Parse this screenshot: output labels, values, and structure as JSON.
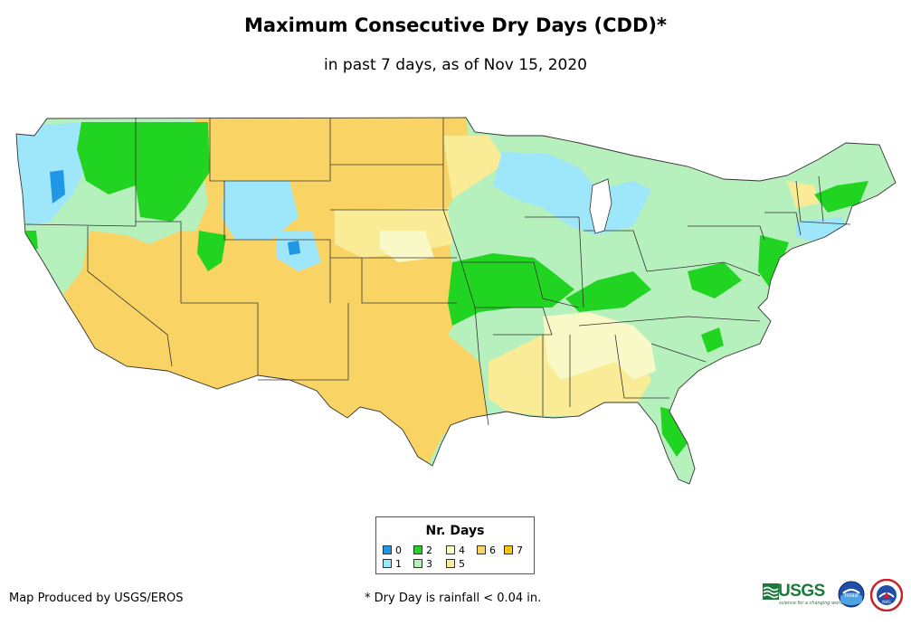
{
  "title": "Maximum Consecutive Dry Days (CDD)*",
  "subtitle": "in past 7 days, as of Nov 15, 2020",
  "legend": {
    "title": "Nr. Days",
    "items": [
      {
        "label": "0",
        "color": "#1f96e6"
      },
      {
        "label": "1",
        "color": "#9ee6fa"
      },
      {
        "label": "2",
        "color": "#22d422"
      },
      {
        "label": "3",
        "color": "#b6f0bc"
      },
      {
        "label": "4",
        "color": "#f9f9c8"
      },
      {
        "label": "5",
        "color": "#faec96"
      },
      {
        "label": "6",
        "color": "#f9d464"
      },
      {
        "label": "7",
        "color": "#f8c418"
      }
    ]
  },
  "credit": "Map Produced by USGS/EROS",
  "footnote": "* Dry Day is rainfall < 0.04 in.",
  "logos": {
    "usgs": "USGS",
    "usgs_tagline": "science for a changing world",
    "noaa": "noaa",
    "nws": "NWS"
  }
}
